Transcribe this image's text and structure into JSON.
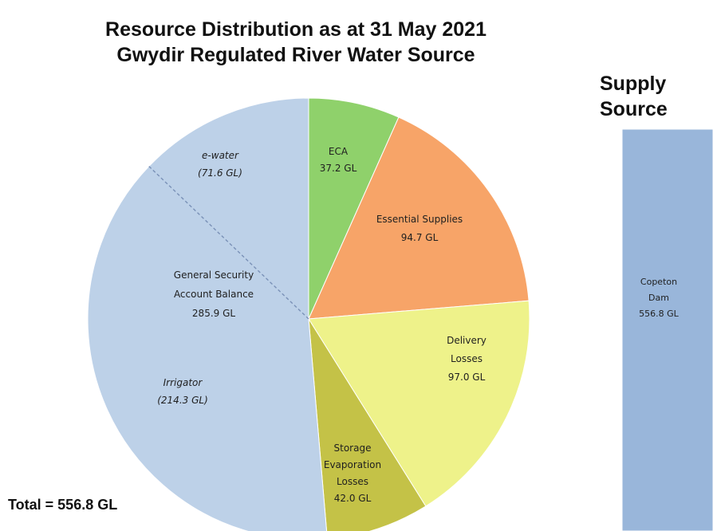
{
  "chart_data": [
    {
      "type": "pie",
      "title_lines": [
        "Resource Distribution as at 31 May 2021",
        "Gwydir Regulated River Water Source"
      ],
      "total_label": "Total = 556.8 GL",
      "slices": [
        {
          "id": "eca",
          "lines": [
            "ECA",
            "37.2 GL"
          ],
          "value": 37.2,
          "color": "#8fd16b"
        },
        {
          "id": "essential-supplies",
          "lines": [
            "Essential Supplies",
            "94.7 GL"
          ],
          "value": 94.7,
          "color": "#f7a468"
        },
        {
          "id": "delivery-losses",
          "lines": [
            "Delivery",
            "Losses",
            "97.0 GL"
          ],
          "value": 97.0,
          "color": "#eef28a"
        },
        {
          "id": "storage-evaporation-losses",
          "lines": [
            "Storage",
            "Evaporation",
            "Losses",
            "42.0 GL"
          ],
          "value": 42.0,
          "color": "#c4c247"
        },
        {
          "id": "general-security-account-balance",
          "lines": [
            "General Security",
            "Account Balance",
            "285.9 GL"
          ],
          "value": 285.9,
          "color": "#bdd1e8",
          "sub_labels": [
            {
              "id": "e-water",
              "lines": [
                "e-water",
                "(71.6 GL)"
              ],
              "value": 71.6
            },
            {
              "id": "irrigator",
              "lines": [
                "Irrigator",
                "(214.3 GL)"
              ],
              "value": 214.3
            }
          ]
        }
      ]
    },
    {
      "type": "bar",
      "title_lines": [
        "Supply",
        "Source"
      ],
      "segments": [
        {
          "id": "copeton-dam",
          "lines": [
            "Copeton",
            "Dam",
            "556.8 GL"
          ],
          "value": 556.8,
          "color": "#99b6da"
        }
      ]
    }
  ]
}
